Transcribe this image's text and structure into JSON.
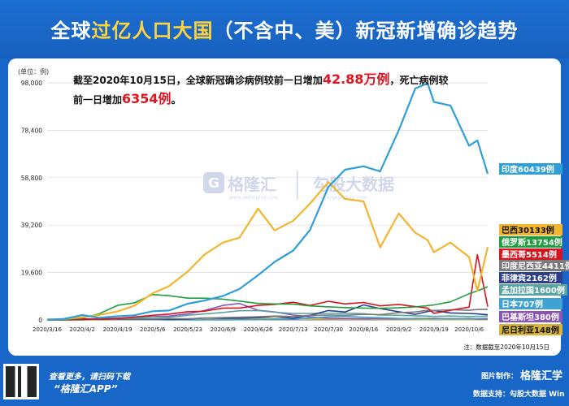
{
  "header": {
    "title_pre": "全球",
    "title_highlight": "过亿人口大国",
    "title_post": "（不含中、美）新冠新增确诊趋势"
  },
  "annotation": {
    "line1_pre": "截至2020年10月15日，全球新冠确诊病例较前一日增加",
    "line1_value": "42.88万例",
    "line1_post": "，死亡病例较",
    "line2_pre": "前一日增加",
    "line2_value": "6354例",
    "line2_post": "。"
  },
  "watermark": {
    "brand": "格隆汇",
    "brand_url": "www.gelonghui.com",
    "data_brand": "勾股大数据",
    "data_url": "www.gogudata.com"
  },
  "source_note": "注：数据截至2020年10月15日",
  "footer": {
    "line1": "查看更多，请扫码下载",
    "line2": "“格隆汇APP”",
    "credit_label": "图片制作：",
    "credit_brand": "格隆汇学",
    "support": "数据支持：勾股大数据 Win"
  },
  "colors": {
    "India": "#2e9fd8",
    "Brazil": "#f1b62e",
    "Russia": "#1f9e3f",
    "Mexico": "#d6141f",
    "Indonesia": "#7b7b7b",
    "Philippines": "#2d3f8c",
    "Bangladesh": "#5aa3a0",
    "Japan": "#3ea3d4",
    "Pakistan": "#8b55b4",
    "Nigeria": "#d7b53a"
  },
  "chart_data": {
    "type": "line",
    "ylabel": "(单位：例)",
    "ylim": [
      0,
      98000
    ],
    "yticks": [
      0,
      19600,
      39200,
      58800,
      78400,
      98000
    ],
    "ytick_labels": [
      "0",
      "19,600",
      "39,200",
      "58,800",
      "78,400",
      "98,000"
    ],
    "xticks": [
      "2020/3/16",
      "2020/4/2",
      "2020/4/19",
      "2020/5/6",
      "2020/5/23",
      "2020/6/9",
      "2020/6/26",
      "2020/7/13",
      "2020/7/30",
      "2020/8/16",
      "2020/9/2",
      "2020/9/19",
      "2020/10/6"
    ],
    "x": [
      "2020/3/16",
      "2020/3/24",
      "2020/4/2",
      "2020/4/10",
      "2020/4/19",
      "2020/4/27",
      "2020/5/6",
      "2020/5/14",
      "2020/5/23",
      "2020/5/31",
      "2020/6/9",
      "2020/6/17",
      "2020/6/26",
      "2020/7/4",
      "2020/7/13",
      "2020/7/21",
      "2020/7/30",
      "2020/8/7",
      "2020/8/16",
      "2020/8/24",
      "2020/9/2",
      "2020/9/10",
      "2020/9/16",
      "2020/9/19",
      "2020/9/27",
      "2020/10/6",
      "2020/10/10",
      "2020/10/15"
    ],
    "series": [
      {
        "name": "India",
        "label": "印度60439例",
        "values": [
          100,
          400,
          2000,
          900,
          1500,
          1900,
          3600,
          3900,
          6700,
          8000,
          9900,
          12800,
          18500,
          24000,
          28700,
          37100,
          55000,
          62100,
          63500,
          61400,
          78400,
          95700,
          97800,
          90100,
          88600,
          72000,
          74200,
          60439
        ]
      },
      {
        "name": "Brazil",
        "label": "巴西30133例",
        "values": [
          200,
          400,
          1100,
          2000,
          3500,
          5800,
          11000,
          14000,
          20000,
          27000,
          32000,
          34000,
          46000,
          37000,
          41000,
          48000,
          57000,
          50000,
          49000,
          30000,
          44000,
          36000,
          33000,
          28000,
          32000,
          26000,
          12000,
          30133
        ]
      },
      {
        "name": "Russia",
        "label": "俄罗斯13754例",
        "values": [
          0,
          100,
          800,
          2500,
          6000,
          7000,
          10500,
          10000,
          9000,
          9000,
          8600,
          7800,
          6800,
          6600,
          6500,
          5800,
          5400,
          5100,
          4900,
          4800,
          5000,
          5400,
          5900,
          6200,
          7500,
          10800,
          12000,
          13754
        ]
      },
      {
        "name": "Mexico",
        "label": "墨西哥5514例",
        "values": [
          0,
          30,
          120,
          400,
          600,
          1200,
          1900,
          2400,
          3400,
          3600,
          4900,
          4900,
          6000,
          6400,
          7300,
          6000,
          7700,
          6600,
          7200,
          5800,
          6400,
          5500,
          4900,
          2700,
          4000,
          5300,
          27000,
          5514
        ]
      },
      {
        "name": "Indonesia",
        "label": "印度尼西亚4411例",
        "values": [
          10,
          90,
          150,
          300,
          350,
          400,
          400,
          550,
          500,
          750,
          1000,
          1100,
          1300,
          1600,
          1400,
          1900,
          2000,
          1900,
          2300,
          2200,
          3000,
          3300,
          4000,
          3900,
          4200,
          4000,
          4300,
          4411
        ]
      },
      {
        "name": "Philippines",
        "label": "菲律宾2162例",
        "values": [
          20,
          80,
          500,
          200,
          200,
          250,
          300,
          200,
          350,
          800,
          700,
          700,
          900,
          1500,
          700,
          1900,
          3900,
          3300,
          6200,
          4700,
          3400,
          2300,
          3500,
          3900,
          2900,
          2700,
          2500,
          2162
        ]
      },
      {
        "name": "Bangladesh",
        "label": "孟加拉国1600例",
        "values": [
          0,
          10,
          50,
          300,
          500,
          800,
          1100,
          1100,
          1900,
          2500,
          3100,
          3800,
          3900,
          3200,
          2700,
          2700,
          2700,
          2800,
          2600,
          2000,
          1900,
          1700,
          1600,
          1500,
          1600,
          1400,
          1500,
          1600
        ]
      },
      {
        "name": "Japan",
        "label": "日本707例",
        "values": [
          50,
          80,
          300,
          500,
          400,
          200,
          90,
          30,
          30,
          40,
          40,
          60,
          100,
          300,
          400,
          800,
          1300,
          1500,
          1100,
          900,
          600,
          500,
          600,
          500,
          550,
          500,
          600,
          707
        ]
      },
      {
        "name": "Pakistan",
        "label": "巴基斯坦380例",
        "values": [
          50,
          100,
          250,
          400,
          700,
          900,
          1300,
          1600,
          2500,
          3900,
          6000,
          6800,
          4000,
          3300,
          2000,
          1300,
          700,
          600,
          500,
          500,
          400,
          600,
          600,
          700,
          500,
          600,
          400,
          380
        ]
      },
      {
        "name": "Nigeria",
        "label": "尼日利亚148例",
        "values": [
          0,
          10,
          10,
          30,
          100,
          200,
          300,
          250,
          300,
          350,
          500,
          500,
          700,
          600,
          600,
          500,
          400,
          350,
          400,
          250,
          200,
          150,
          150,
          160,
          150,
          130,
          150,
          148
        ]
      }
    ]
  }
}
